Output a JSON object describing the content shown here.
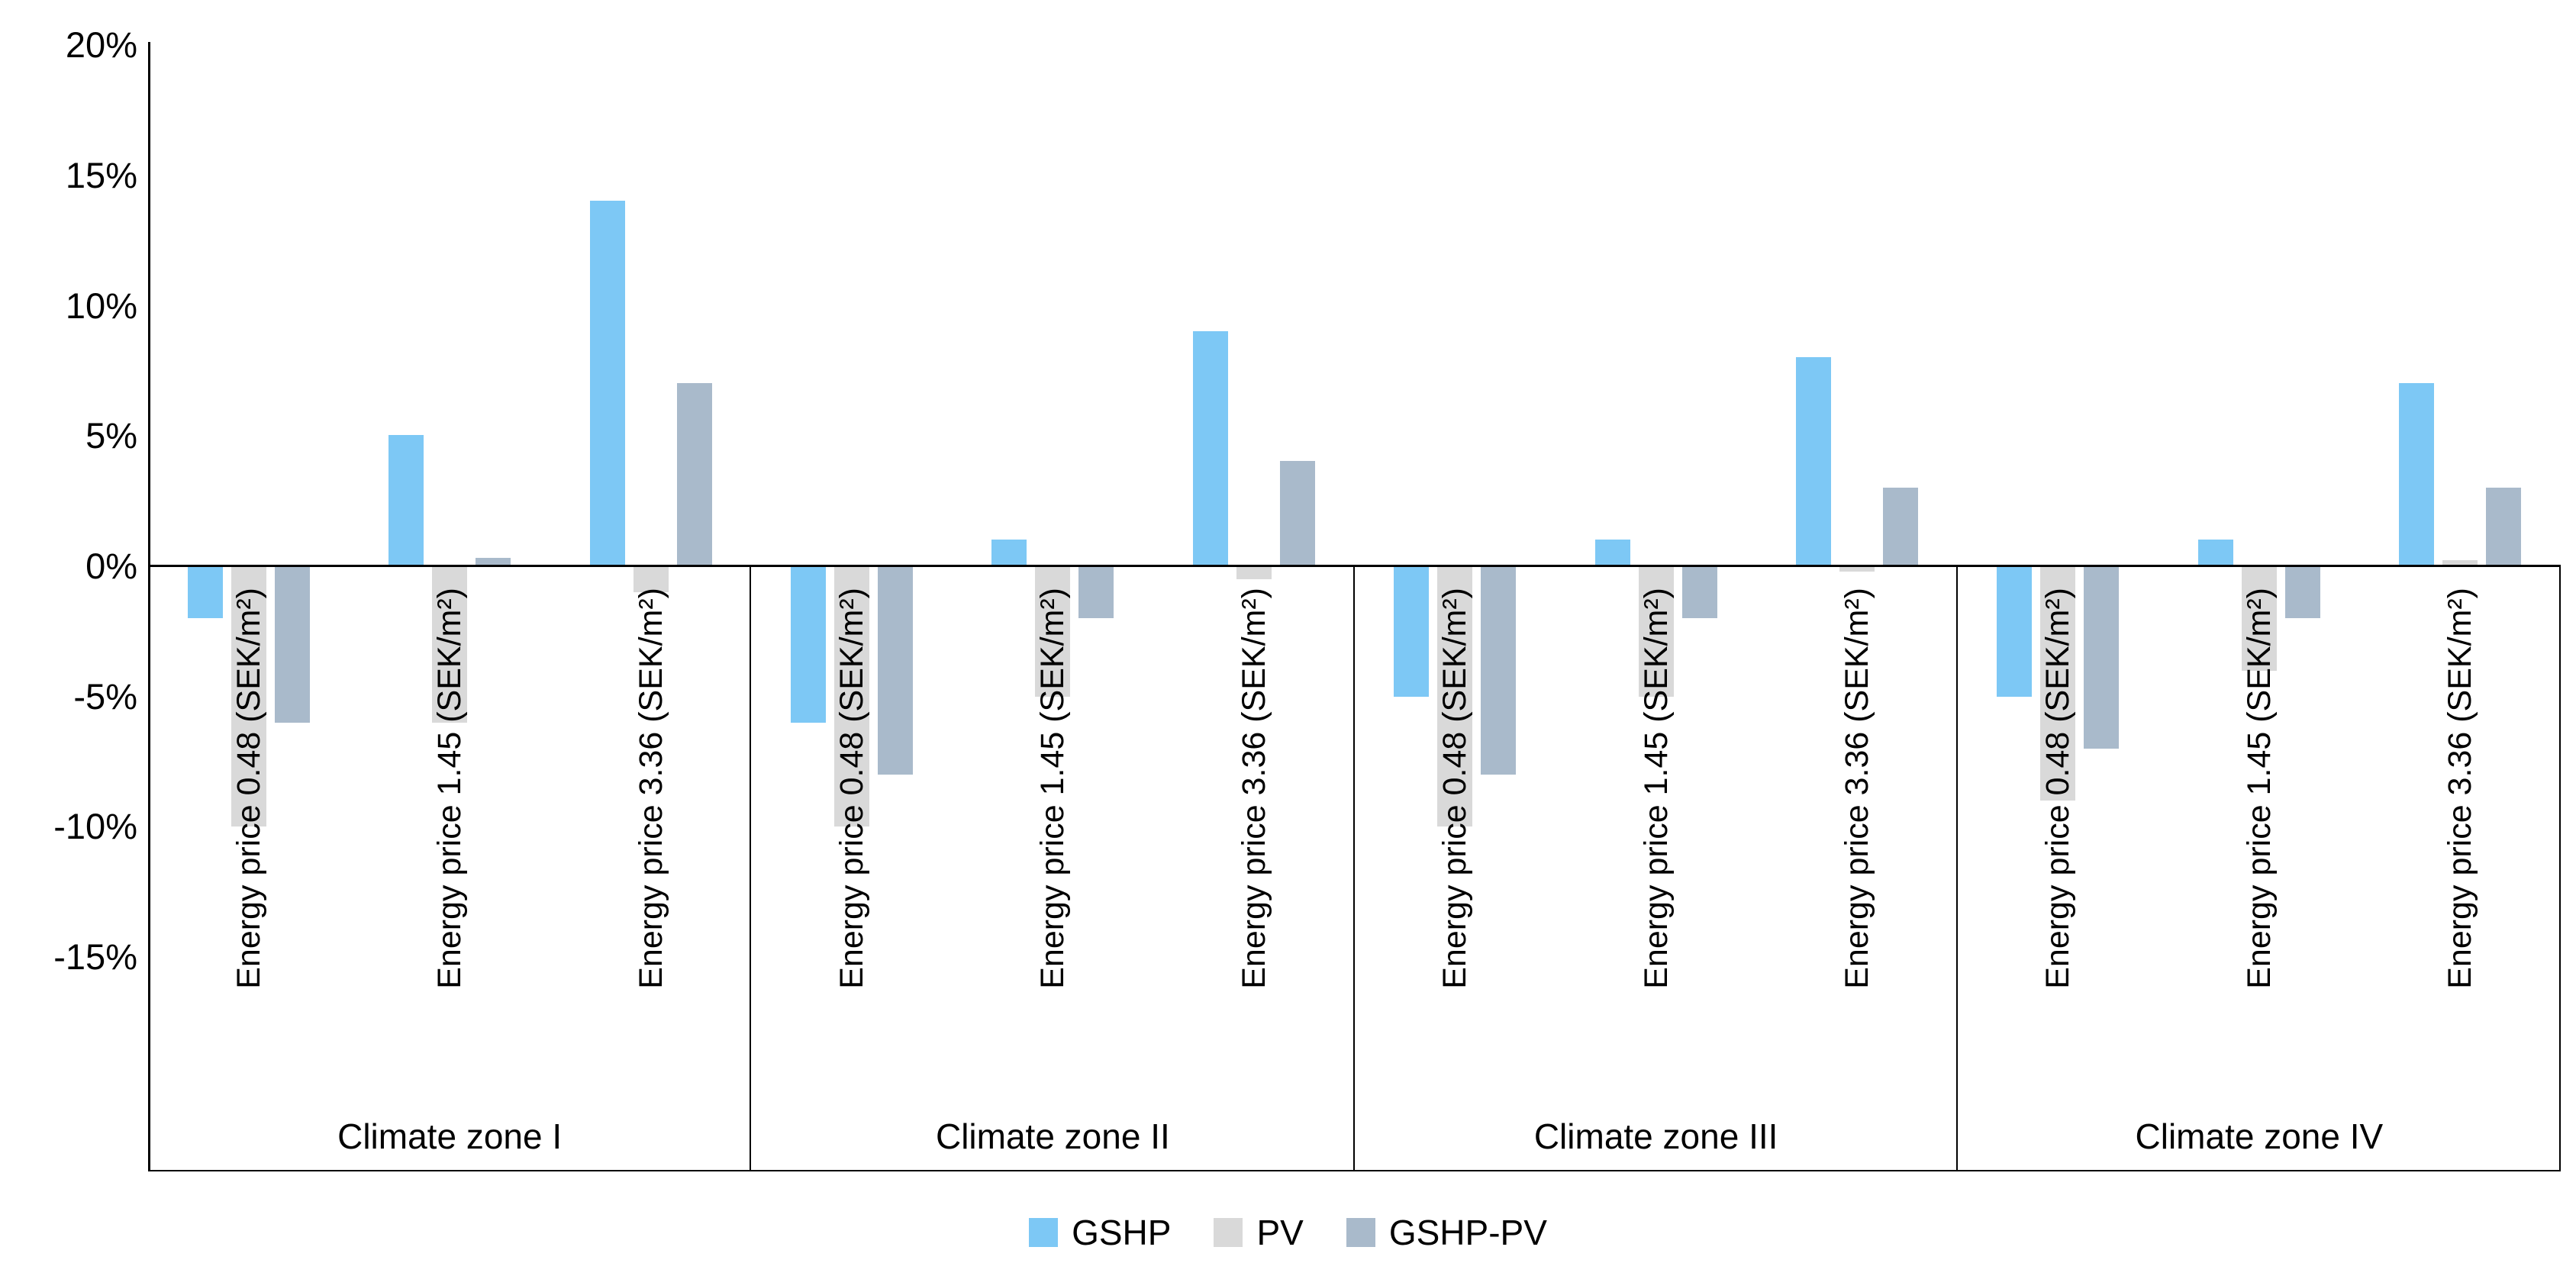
{
  "chart_data": {
    "type": "bar",
    "title": "",
    "y_axis": {
      "unit": "%",
      "min": -15,
      "max": 20,
      "tick_step": 5,
      "ticks": [
        "20%",
        "15%",
        "10%",
        "5%",
        "0%",
        "-5%",
        "-10%",
        "-15%"
      ],
      "tick_values": [
        20,
        15,
        10,
        5,
        0,
        -5,
        -10,
        -15
      ],
      "grid": "off"
    },
    "zones": [
      "Climate zone I",
      "Climate zone II",
      "Climate zone III",
      "Climate zone IV"
    ],
    "categories": [
      "Energy price 0.48 (SEK/m²)",
      "Energy price 1.45 (SEK/m²)",
      "Energy price 3.36 (SEK/m²)",
      "Energy price 0.48 (SEK/m²)",
      "Energy price 1.45 (SEK/m²)",
      "Energy price 3.36 (SEK/m²)",
      "Energy price 0.48 (SEK/m²)",
      "Energy price 1.45 (SEK/m²)",
      "Energy price 3.36 (SEK/m²)",
      "Energy price 0.48 (SEK/m²)",
      "Energy price 1.45 (SEK/m²)",
      "Energy price 3.36 (SEK/m²)"
    ],
    "series": [
      {
        "name": "GSHP",
        "color": "#7DC8F5",
        "values": [
          -2,
          5,
          14,
          -6,
          1,
          9,
          -5,
          1,
          8,
          -5,
          1,
          7
        ]
      },
      {
        "name": "PV",
        "color": "#D9D9D9",
        "values": [
          -10,
          -6,
          -1,
          -10,
          -5,
          -0.5,
          -10,
          -5,
          -0.2,
          -9,
          -4,
          0.2
        ]
      },
      {
        "name": "GSHP-PV",
        "color": "#A9BACB",
        "values": [
          -6,
          0.3,
          7,
          -8,
          -2,
          4,
          -8,
          -2,
          3,
          -7,
          -2,
          3
        ]
      }
    ],
    "legend": {
      "position": "bottom",
      "items": [
        "GSHP",
        "PV",
        "GSHP-PV"
      ]
    },
    "axis_color": "#000000",
    "background_color": "#ffffff"
  }
}
